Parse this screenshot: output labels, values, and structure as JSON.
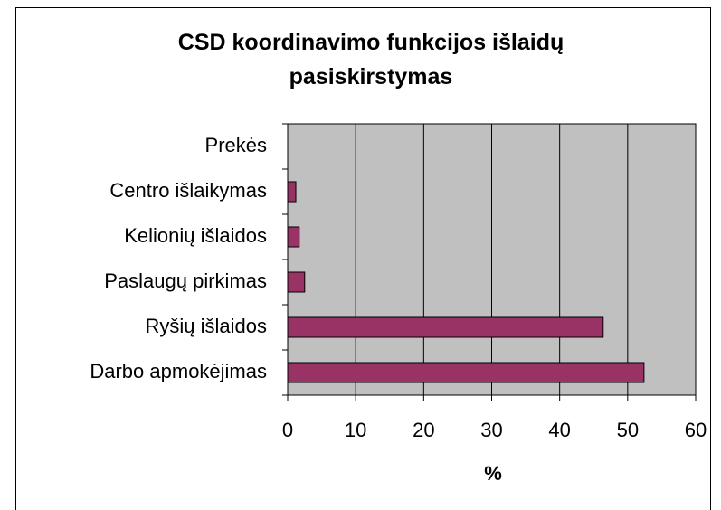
{
  "chart_data": {
    "type": "bar",
    "orientation": "horizontal",
    "title": "CSD koordinavimo funkcijos išlaidų pasiskirstymas",
    "x_label": "%",
    "categories": [
      "Prekės",
      "Centro išlaikymas",
      "Kelionių išlaidos",
      "Paslaugų pirkimas",
      "Ryšių išlaidos",
      "Darbo apmokėjimas"
    ],
    "values": [
      0,
      1.2,
      1.7,
      2.5,
      46.4,
      52.4
    ],
    "color": "#993366",
    "xlim": [
      0,
      60
    ],
    "xticks": [
      0,
      10,
      20,
      30,
      40,
      50,
      60
    ],
    "grid": true,
    "plot_background": "#c0c0c0"
  }
}
